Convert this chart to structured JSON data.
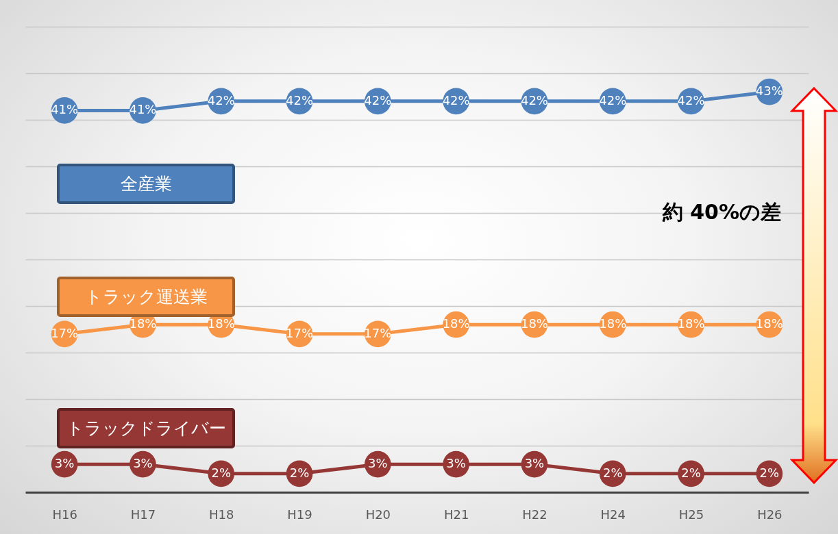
{
  "chart_data": {
    "type": "line",
    "categories": [
      "H16",
      "H17",
      "H18",
      "H19",
      "H20",
      "H21",
      "H22",
      "H24",
      "H25",
      "H26"
    ],
    "series": [
      {
        "name": "全産業",
        "color": "#4f81bd",
        "values": [
          41,
          41,
          42,
          42,
          42,
          42,
          42,
          42,
          42,
          43
        ],
        "value_labels": [
          "41%",
          "41%",
          "42%",
          "42%",
          "42%",
          "42%",
          "42%",
          "42%",
          "42%",
          "43%"
        ]
      },
      {
        "name": "トラック運送業",
        "color": "#f79646",
        "values": [
          17,
          18,
          18,
          17,
          17,
          18,
          18,
          18,
          18,
          18
        ],
        "value_labels": [
          "17%",
          "18%",
          "18%",
          "17%",
          "17%",
          "18%",
          "18%",
          "18%",
          "18%",
          "18%"
        ]
      },
      {
        "name": "トラックドライバー",
        "color": "#953735",
        "values": [
          3,
          3,
          2,
          2,
          3,
          3,
          3,
          2,
          2,
          2
        ],
        "value_labels": [
          "3%",
          "3%",
          "2%",
          "2%",
          "3%",
          "3%",
          "3%",
          "2%",
          "2%",
          "2%"
        ]
      }
    ],
    "ylim": [
      0,
      50
    ],
    "yticks": [
      {
        "value": 0,
        "label": null
      },
      {
        "value": 5,
        "label": null
      },
      {
        "value": 10,
        "label": null
      },
      {
        "value": 15,
        "label": null
      },
      {
        "value": 20,
        "label": null
      },
      {
        "value": 25,
        "label": null
      },
      {
        "value": 30,
        "label": null
      },
      {
        "value": 35,
        "label": null
      },
      {
        "value": 40,
        "label": null
      },
      {
        "value": 45,
        "label": null
      },
      {
        "value": 50,
        "label": null
      }
    ],
    "grid": "y",
    "legend": false,
    "tick_labels": "x",
    "marker": "circle",
    "line_style": "solid",
    "annotations": [
      "約 40%の差"
    ]
  }
}
